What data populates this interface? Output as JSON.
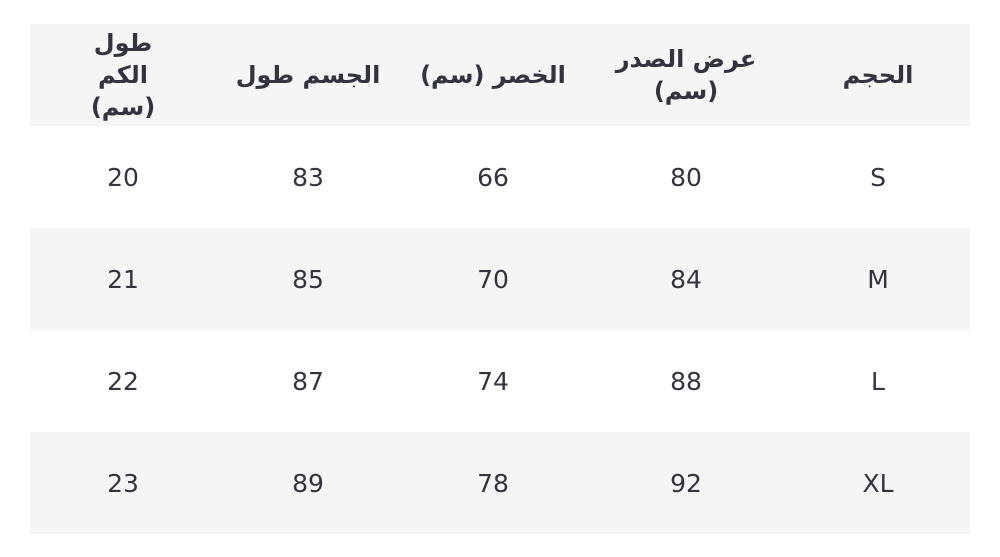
{
  "table": {
    "headers": [
      "الحجم",
      "عرض الصدر (سم)",
      "الخصر (سم)",
      "الجسم طول",
      "طول الكم (سم)"
    ],
    "rows": [
      [
        "S",
        "80",
        "66",
        "83",
        "20"
      ],
      [
        "M",
        "84",
        "70",
        "85",
        "21"
      ],
      [
        "L",
        "88",
        "74",
        "87",
        "22"
      ],
      [
        "XL",
        "92",
        "78",
        "89",
        "23"
      ]
    ]
  }
}
